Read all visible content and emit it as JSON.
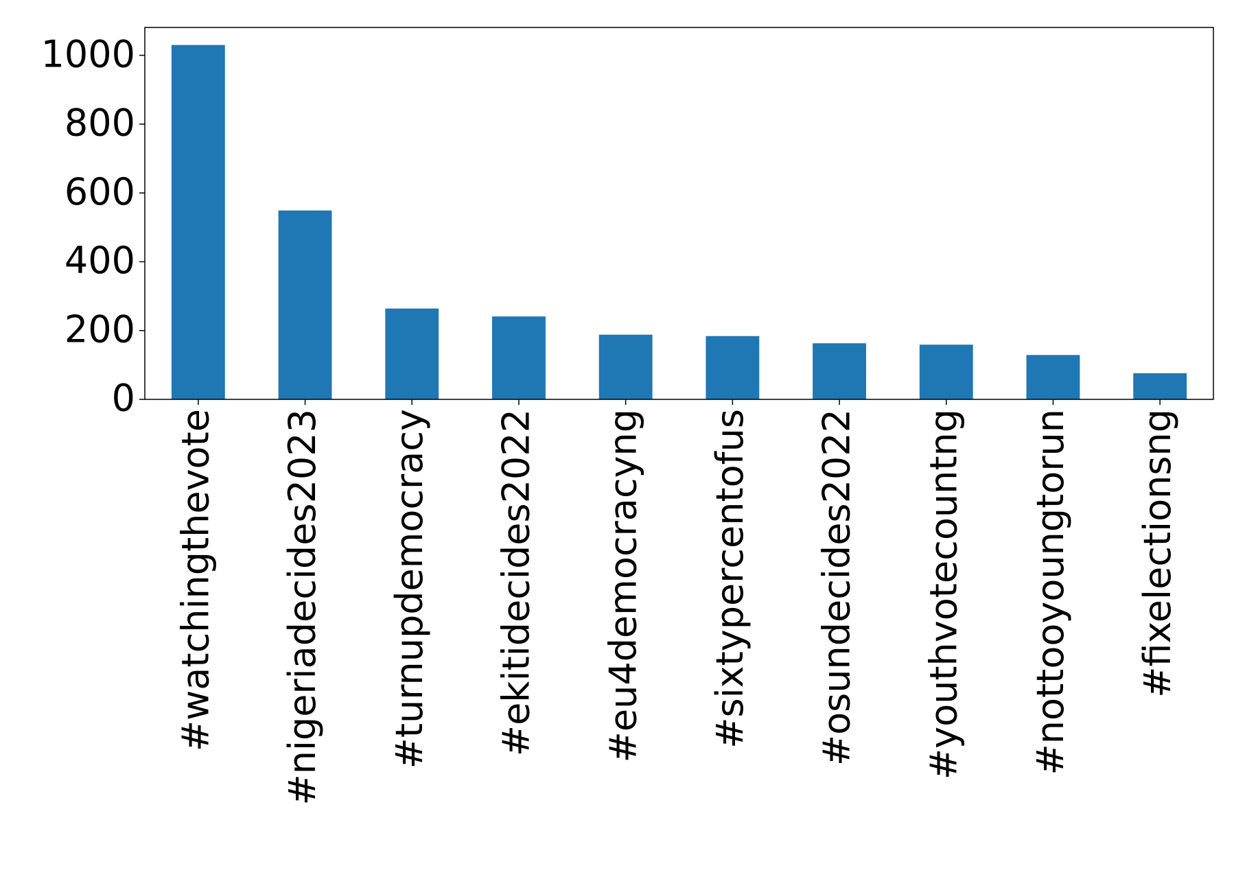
{
  "chart_data": {
    "type": "bar",
    "categories": [
      "#watchingthevote",
      "#nigeriadecides2023",
      "#turnupdemocracy",
      "#ekitidecides2022",
      "#eu4democracyng",
      "#sixtypercentofus",
      "#osundecides2022",
      "#youthvotecountng",
      "#nottooyoungtorun",
      "#fixelectionsng"
    ],
    "values": [
      1030,
      549,
      264,
      241,
      188,
      184,
      163,
      159,
      129,
      76
    ],
    "color": "#1f77b4",
    "ylim": [
      0,
      1081
    ],
    "yticks": [
      0,
      200,
      400,
      600,
      800,
      1000
    ]
  }
}
